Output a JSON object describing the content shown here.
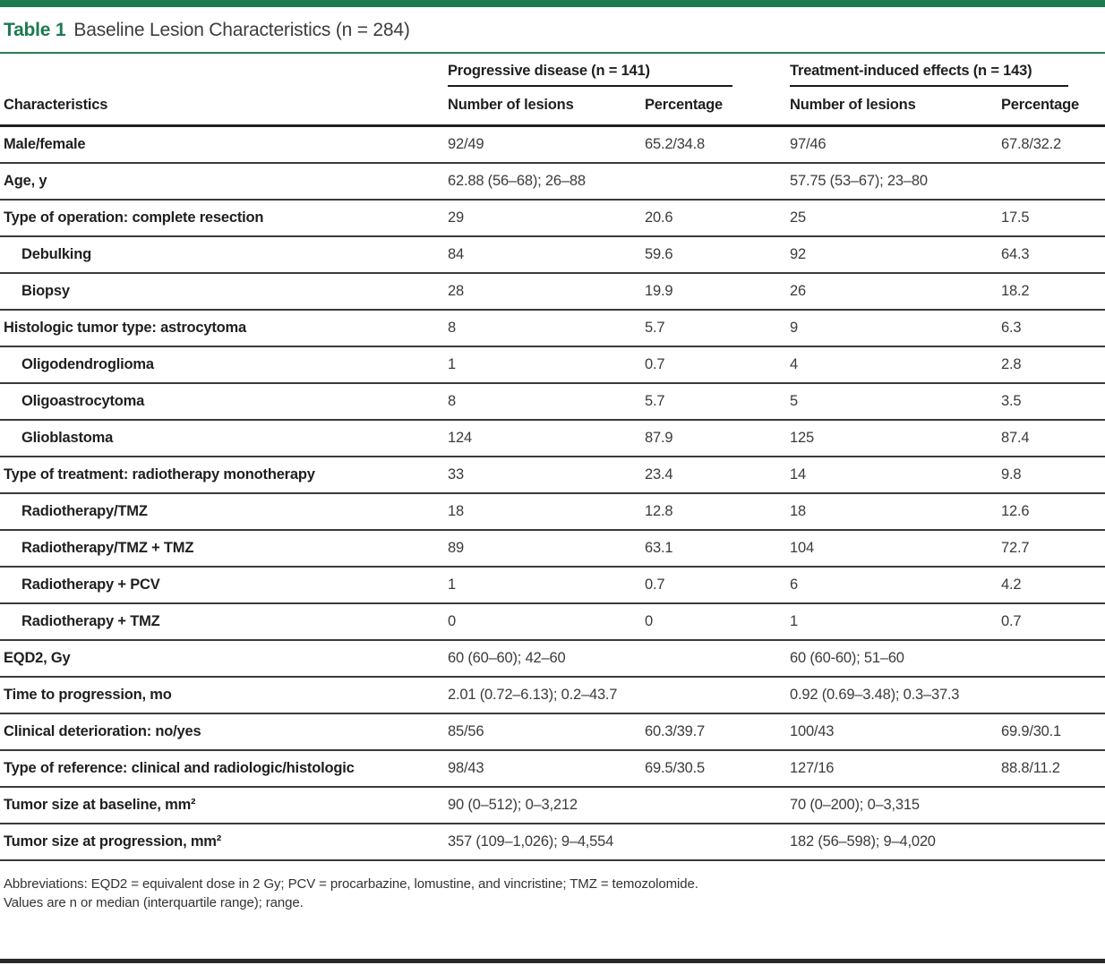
{
  "title": {
    "label": "Table 1",
    "text": "Baseline Lesion Characteristics (n = 284)"
  },
  "table": {
    "col_groups": [
      {
        "label": "Progressive disease (n = 141)"
      },
      {
        "label": "Treatment-induced effects (n = 143)"
      }
    ],
    "columns": [
      "Characteristics",
      "Number of lesions",
      "Percentage",
      "Number of lesions",
      "Percentage"
    ],
    "rows": [
      {
        "label": "Male/female",
        "indent": false,
        "values": [
          "92/49",
          "65.2/34.8",
          "97/46",
          "67.8/32.2"
        ]
      },
      {
        "label": "Age, y",
        "indent": false,
        "values": [
          "62.88 (56–68); 26–88",
          "",
          "57.75 (53–67); 23–80",
          ""
        ]
      },
      {
        "label": "Type of operation: complete resection",
        "indent": false,
        "values": [
          "29",
          "20.6",
          "25",
          "17.5"
        ]
      },
      {
        "label": "Debulking",
        "indent": true,
        "values": [
          "84",
          "59.6",
          "92",
          "64.3"
        ]
      },
      {
        "label": "Biopsy",
        "indent": true,
        "values": [
          "28",
          "19.9",
          "26",
          "18.2"
        ]
      },
      {
        "label": "Histologic tumor type: astrocytoma",
        "indent": false,
        "values": [
          "8",
          "5.7",
          "9",
          "6.3"
        ]
      },
      {
        "label": "Oligodendroglioma",
        "indent": true,
        "values": [
          "1",
          "0.7",
          "4",
          "2.8"
        ]
      },
      {
        "label": "Oligoastrocytoma",
        "indent": true,
        "values": [
          "8",
          "5.7",
          "5",
          "3.5"
        ]
      },
      {
        "label": "Glioblastoma",
        "indent": true,
        "values": [
          "124",
          "87.9",
          "125",
          "87.4"
        ]
      },
      {
        "label": "Type of treatment: radiotherapy monotherapy",
        "indent": false,
        "values": [
          "33",
          "23.4",
          "14",
          "9.8"
        ]
      },
      {
        "label": "Radiotherapy/TMZ",
        "indent": true,
        "values": [
          "18",
          "12.8",
          "18",
          "12.6"
        ]
      },
      {
        "label": "Radiotherapy/TMZ + TMZ",
        "indent": true,
        "values": [
          "89",
          "63.1",
          "104",
          "72.7"
        ]
      },
      {
        "label": "Radiotherapy + PCV",
        "indent": true,
        "values": [
          "1",
          "0.7",
          "6",
          "4.2"
        ]
      },
      {
        "label": "Radiotherapy + TMZ",
        "indent": true,
        "values": [
          "0",
          "0",
          "1",
          "0.7"
        ]
      },
      {
        "label": "EQD2, Gy",
        "indent": false,
        "values": [
          "60 (60–60); 42–60",
          "",
          "60 (60-60); 51–60",
          ""
        ]
      },
      {
        "label": "Time to progression, mo",
        "indent": false,
        "values": [
          "2.01 (0.72–6.13); 0.2–43.7",
          "",
          "0.92 (0.69–3.48); 0.3–37.3",
          ""
        ]
      },
      {
        "label": "Clinical deterioration: no/yes",
        "indent": false,
        "values": [
          "85/56",
          "60.3/39.7",
          "100/43",
          "69.9/30.1"
        ]
      },
      {
        "label": "Type of reference: clinical and radiologic/histologic",
        "indent": false,
        "values": [
          "98/43",
          "69.5/30.5",
          "127/16",
          "88.8/11.2"
        ]
      },
      {
        "label": "Tumor size at baseline, mm²",
        "indent": false,
        "values": [
          "90 (0–512); 0–3,212",
          "",
          "70 (0–200); 0–3,315",
          ""
        ]
      },
      {
        "label": "Tumor size at progression, mm²",
        "indent": false,
        "values": [
          "357 (109–1,026); 9–4,554",
          "",
          "182 (56–598); 9–4,020",
          ""
        ]
      }
    ]
  },
  "footnotes": [
    "Abbreviations: EQD2 = equivalent dose in 2 Gy; PCV = procarbazine, lomustine, and vincristine; TMZ = temozolomide.",
    "Values are n or median (interquartile range); range."
  ],
  "colors": {
    "accent_green": "#1e7b50",
    "rule_black": "#1a1a1a",
    "bottom_bar": "#2b2b2b"
  }
}
